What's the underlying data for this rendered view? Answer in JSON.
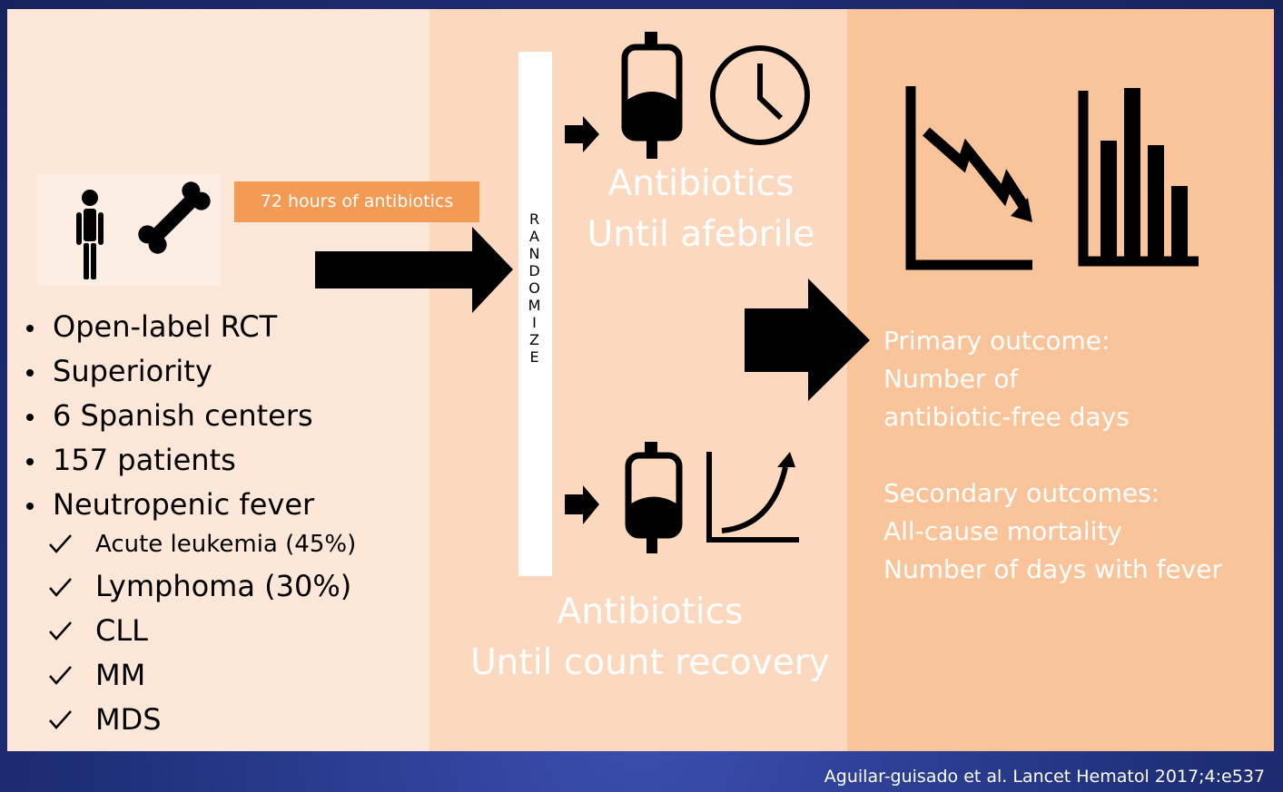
{
  "left_panel": {
    "intervention_label": "72 hours of antibiotics",
    "bullets": [
      "Open-label RCT",
      "Superiority",
      "6 Spanish centers",
      "157 patients",
      "Neutropenic fever"
    ],
    "sub_bullets": [
      "Acute leukemia (45%)",
      "Lymphoma (30%)",
      "CLL",
      "MM",
      "MDS"
    ]
  },
  "randomize": "RANDOMIZE",
  "arms": [
    {
      "title": "Antibiotics",
      "subtitle": "Until afebrile"
    },
    {
      "title": "Antibiotics",
      "subtitle": "Until count recovery"
    }
  ],
  "outcomes": {
    "primary": [
      "Primary outcome:",
      "Number of",
      "antibiotic-free days"
    ],
    "secondary": [
      "Secondary outcomes:",
      "All-cause mortality",
      "Number of days with fever"
    ]
  },
  "citation": "Aguilar-guisado et al. Lancet Hematol 2017;4:e537"
}
